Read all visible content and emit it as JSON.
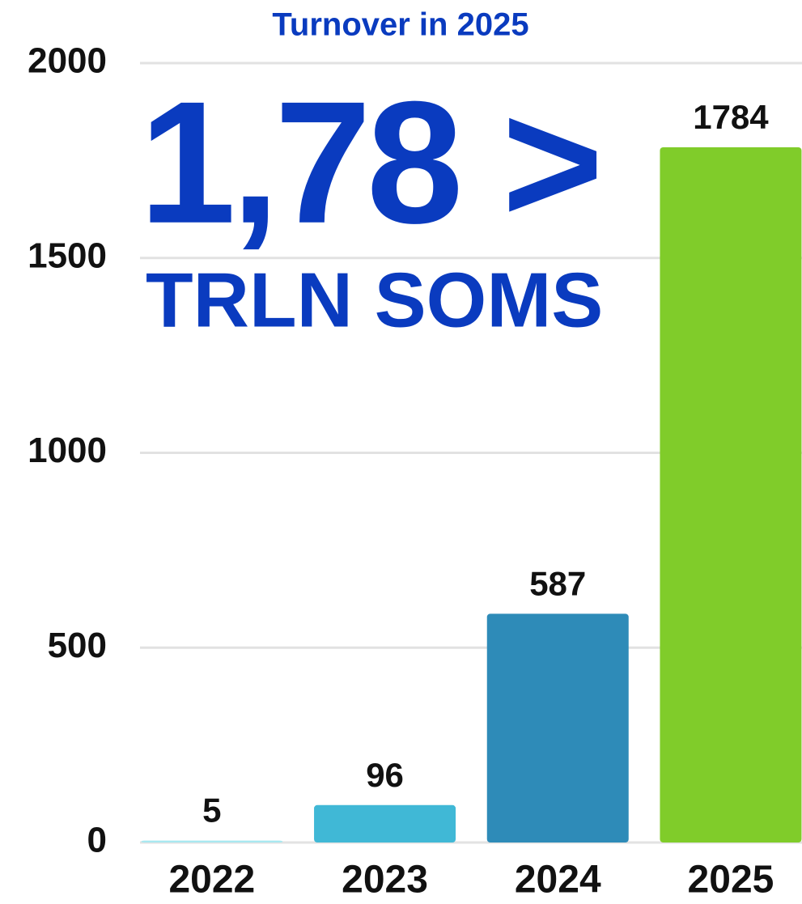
{
  "chart_data": {
    "type": "bar",
    "title": "Turnover in 2025",
    "annotations": [
      "1,78 >",
      "TRLN SOMS"
    ],
    "categories": [
      "2022",
      "2023",
      "2024",
      "2025"
    ],
    "values": [
      5,
      96,
      587,
      1784
    ],
    "colors": [
      "#a8e8f0",
      "#40b8d6",
      "#2e8bb8",
      "#80cc2a"
    ],
    "ylim": [
      0,
      2000
    ],
    "yticks": [
      0,
      500,
      1000,
      1500,
      2000
    ],
    "grid": true
  }
}
